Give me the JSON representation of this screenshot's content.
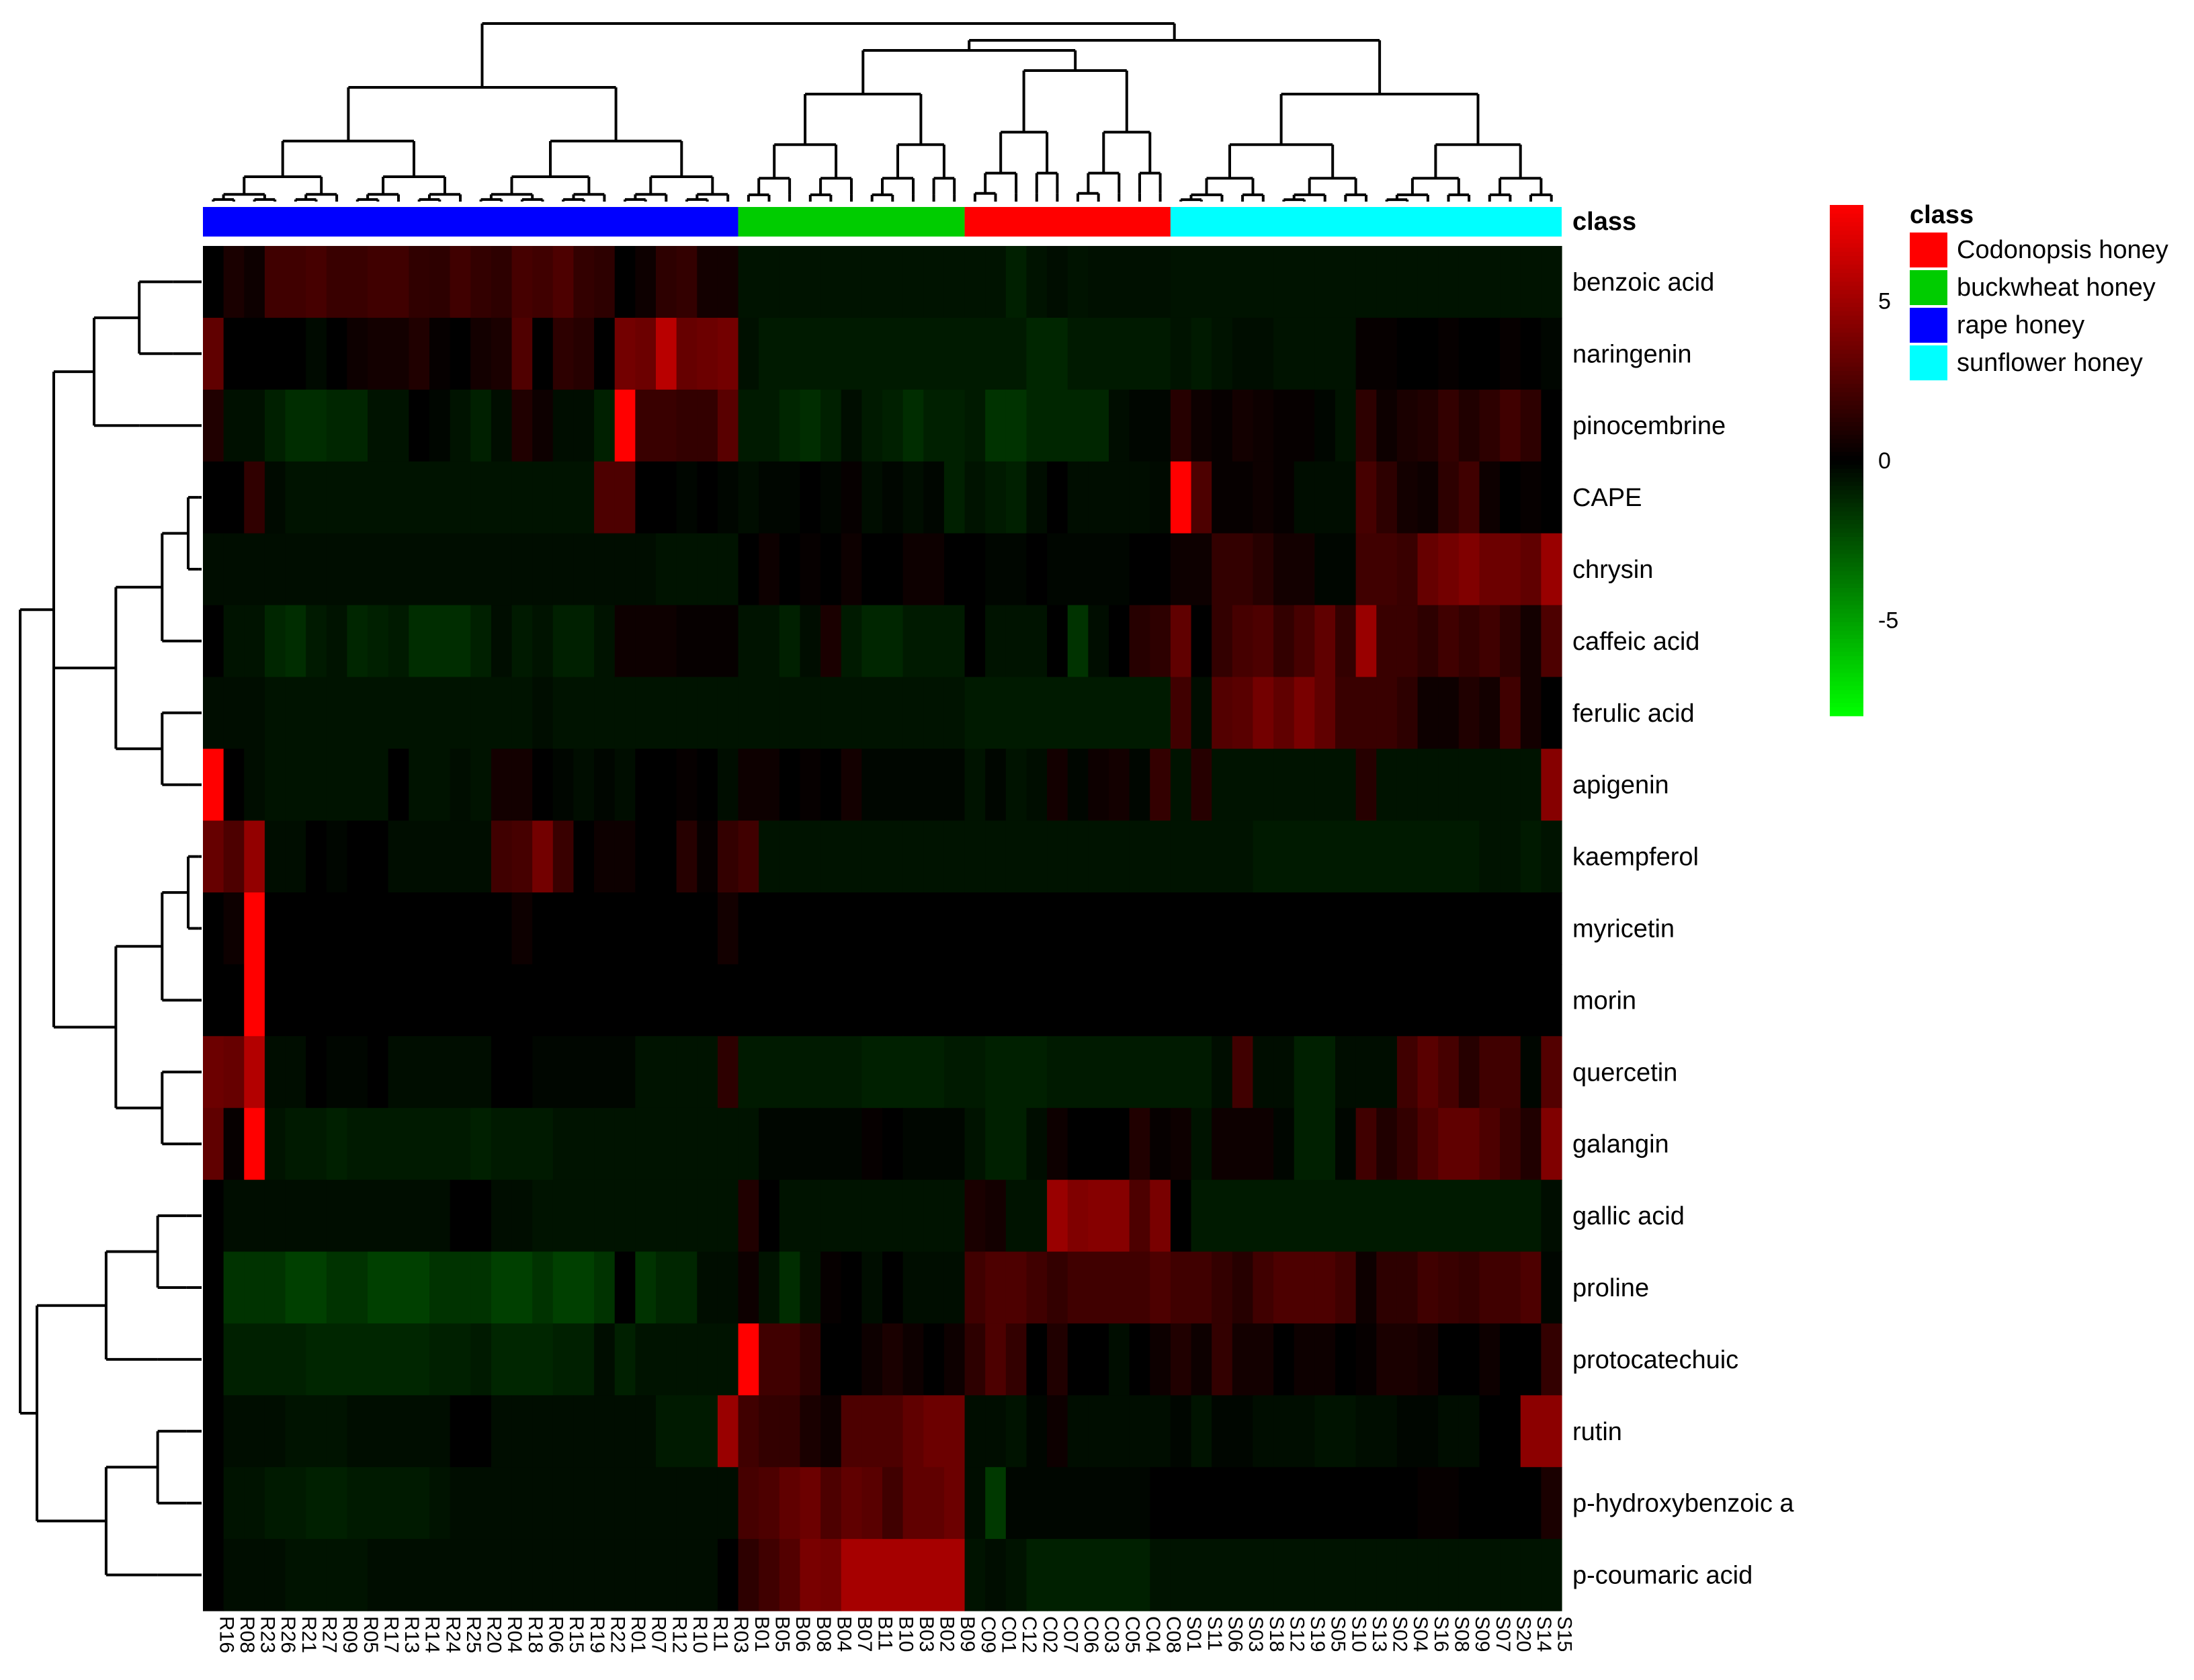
{
  "chart_data": {
    "type": "heatmap",
    "columns": [
      "R16",
      "R08",
      "R23",
      "R26",
      "R21",
      "R27",
      "R09",
      "R05",
      "R17",
      "R13",
      "R14",
      "R24",
      "R25",
      "R20",
      "R04",
      "R18",
      "R06",
      "R15",
      "R19",
      "R22",
      "R01",
      "R07",
      "R12",
      "R10",
      "R11",
      "R03",
      "B01",
      "B05",
      "B06",
      "B08",
      "B04",
      "B07",
      "B11",
      "B10",
      "B03",
      "B02",
      "B09",
      "C09",
      "C01",
      "C12",
      "C02",
      "C07",
      "C06",
      "C03",
      "C05",
      "C04",
      "C08",
      "S01",
      "S11",
      "S06",
      "S03",
      "S18",
      "S12",
      "S19",
      "S05",
      "S10",
      "S13",
      "S02",
      "S04",
      "S16",
      "S08",
      "S09",
      "S07",
      "S20",
      "S14",
      "S15"
    ],
    "rows": [
      "benzoic acid",
      "naringenin",
      "pinocembrine",
      "CAPE",
      "chrysin",
      "caffeic acid",
      "ferulic acid",
      "apigenin",
      "kaempferol",
      "myricetin",
      "morin",
      "quercetin",
      "galangin",
      "gallic acid",
      "proline",
      "protocatechuic",
      "rutin",
      "p-hydroxybenzoic a",
      "p-coumaric acid"
    ],
    "class_bar_label": "class",
    "class_segments": [
      {
        "class": "rape honey",
        "count": 26
      },
      {
        "class": "buckwheat honey",
        "count": 11
      },
      {
        "class": "Codonopsis honey",
        "count": 10
      },
      {
        "class": "sunflower honey",
        "count": 19
      }
    ],
    "legend": {
      "title": "class",
      "entries": [
        {
          "label": "Codonopsis honey",
          "color": "#ff0000"
        },
        {
          "label": "buckwheat honey",
          "color": "#00cc00"
        },
        {
          "label": "rape honey",
          "color": "#0000ff"
        },
        {
          "label": "sunflower honey",
          "color": "#00ffff"
        }
      ]
    },
    "color_scale": {
      "min": -8,
      "max": 8,
      "low_color": "#00ff00",
      "mid_color": "#000000",
      "high_color": "#ff0000",
      "ticks": [
        {
          "value": 5,
          "label": "5"
        },
        {
          "value": 0,
          "label": "0"
        },
        {
          "value": -5,
          "label": "-5"
        }
      ]
    },
    "values": [
      [
        0,
        0.8,
        0.4,
        2,
        2,
        2.2,
        1.8,
        1.8,
        2,
        2,
        1.5,
        1.4,
        2,
        1.6,
        1.4,
        2.2,
        2,
        2.4,
        1.6,
        1.4,
        0,
        0.4,
        1.4,
        1.6,
        0.6,
        0.6,
        -0.6,
        -0.6,
        -0.6,
        -0.6,
        -0.6,
        -0.6,
        -0.6,
        -0.6,
        -0.6,
        -0.6,
        -0.6,
        -0.6,
        -0.6,
        -1,
        -0.6,
        -0.4,
        -0.6,
        -0.5,
        -0.5,
        -0.5,
        -0.5,
        -0.6,
        -0.6,
        -0.6,
        -0.6,
        -0.6,
        -0.6,
        -0.6,
        -0.6,
        -0.6,
        -0.6,
        -0.6,
        -0.6,
        -0.6,
        -0.6,
        -0.6,
        -0.6,
        -0.6,
        -0.6,
        -0.6
      ],
      [
        3,
        0,
        0,
        0,
        0,
        -0.3,
        0,
        0.4,
        0.6,
        0.6,
        1,
        0.2,
        0,
        0.6,
        0.8,
        2.5,
        0,
        1.4,
        1.2,
        0,
        3.6,
        3.4,
        5.8,
        3.2,
        3.4,
        3.6,
        -0.5,
        -0.8,
        -0.8,
        -0.8,
        -0.8,
        -0.8,
        -0.8,
        -0.8,
        -0.8,
        -0.8,
        -0.8,
        -0.8,
        -0.8,
        -0.8,
        -1.2,
        -1.2,
        -0.8,
        -0.8,
        -0.8,
        -0.8,
        -0.8,
        -0.6,
        -0.8,
        -0.6,
        -0.4,
        -0.4,
        -0.6,
        -0.6,
        -0.6,
        -0.6,
        0.2,
        0.2,
        0,
        0,
        0.2,
        0,
        0,
        0.2,
        0,
        -0.2
      ],
      [
        1,
        -0.5,
        -0.5,
        -1,
        -1.4,
        -1.4,
        -1.2,
        -1.2,
        -0.6,
        -0.6,
        0,
        -0.2,
        -0.6,
        -1,
        -0.4,
        1,
        0.4,
        -0.4,
        -0.4,
        -1,
        8,
        1.8,
        1.8,
        1.6,
        1.6,
        2.8,
        -0.8,
        -0.8,
        -1.2,
        -1.4,
        -1,
        -0.4,
        -0.8,
        -1,
        -1.4,
        -1,
        -1,
        -0.8,
        -1.6,
        -1.6,
        -1.2,
        -1.2,
        -1.2,
        -1.2,
        -0.4,
        -0.2,
        -0.2,
        1.2,
        0.4,
        0.2,
        0.6,
        0.4,
        0.2,
        0.2,
        -0.2,
        -0.6,
        1.4,
        0.4,
        0.8,
        1,
        1.6,
        1,
        1.4,
        2,
        1.4,
        0
      ],
      [
        0,
        0,
        1.5,
        -0.3,
        -0.6,
        -0.6,
        -0.6,
        -0.6,
        -0.6,
        -0.6,
        -0.6,
        -0.6,
        -0.6,
        -0.6,
        -0.6,
        -0.6,
        -0.6,
        -0.6,
        -0.6,
        2.4,
        2.4,
        0,
        0,
        -0.2,
        0,
        -0.2,
        -0.4,
        -0.2,
        -0.2,
        0,
        -0.2,
        0.2,
        -0.4,
        -0.2,
        -0.4,
        -0.2,
        -1,
        -0.6,
        -0.8,
        -1,
        -0.4,
        0,
        -0.4,
        -0.4,
        -0.4,
        -0.4,
        -0.3,
        8,
        2.4,
        0.2,
        0.2,
        0.4,
        0.2,
        -0.4,
        -0.4,
        -0.4,
        2.2,
        1.4,
        0.6,
        0.4,
        1.4,
        2,
        0.4,
        0,
        0.2,
        0
      ],
      [
        -0.4,
        -0.4,
        -0.4,
        -0.4,
        -0.4,
        -0.4,
        -0.4,
        -0.4,
        -0.4,
        -0.4,
        -0.4,
        -0.4,
        -0.4,
        -0.4,
        -0.4,
        -0.4,
        -0.4,
        -0.4,
        -0.4,
        -0.4,
        -0.4,
        -0.4,
        -0.6,
        -0.6,
        -0.6,
        -0.6,
        0,
        0.4,
        0,
        0.2,
        0,
        0.4,
        0,
        0,
        0.4,
        0.4,
        0,
        0,
        -0.2,
        -0.2,
        0,
        -0.2,
        -0.2,
        -0.2,
        -0.2,
        0,
        0,
        0.4,
        0.4,
        1.6,
        1.6,
        1.2,
        0.6,
        0.6,
        -0.2,
        -0.2,
        2,
        2,
        1.8,
        3.2,
        3.6,
        4,
        3.4,
        3.4,
        3,
        4.8
      ],
      [
        0,
        -0.6,
        -0.6,
        -1.2,
        -1.4,
        -0.8,
        -0.6,
        -1.2,
        -1,
        -0.8,
        -1.4,
        -1.4,
        -1.4,
        -1,
        -0.4,
        -0.8,
        -0.6,
        -1,
        -1,
        -0.6,
        0.4,
        0.4,
        0.4,
        0.2,
        0.2,
        0.2,
        -0.6,
        -0.6,
        -1,
        -0.4,
        0.8,
        -0.8,
        -1.2,
        -1.2,
        -0.8,
        -0.8,
        -0.8,
        0,
        -0.6,
        -0.6,
        -0.6,
        0,
        -1.6,
        -0.4,
        0,
        1.2,
        1.4,
        3,
        0,
        1.6,
        2.2,
        2.4,
        1.6,
        2.2,
        3,
        1.6,
        4.8,
        1.8,
        1.8,
        1.4,
        2,
        1.6,
        2,
        1.4,
        0.6,
        2.4
      ],
      [
        -0.4,
        -0.4,
        -0.4,
        -0.6,
        -0.6,
        -0.6,
        -0.6,
        -0.6,
        -0.6,
        -0.6,
        -0.6,
        -0.6,
        -0.6,
        -0.6,
        -0.6,
        -0.6,
        -0.4,
        -0.6,
        -0.6,
        -0.6,
        -0.6,
        -0.6,
        -0.6,
        -0.6,
        -0.6,
        -0.6,
        -0.6,
        -0.6,
        -0.6,
        -0.6,
        -0.6,
        -0.6,
        -0.6,
        -0.6,
        -0.6,
        -0.6,
        -0.6,
        -0.8,
        -0.8,
        -0.8,
        -0.8,
        -0.8,
        -0.8,
        -0.8,
        -0.8,
        -0.8,
        -0.8,
        2,
        -0.4,
        2.6,
        2.8,
        3.6,
        3,
        3.8,
        3,
        1.8,
        1.8,
        1.8,
        1.4,
        0.4,
        0.4,
        1,
        0.6,
        2,
        0.6,
        0
      ],
      [
        8,
        0,
        -0.4,
        -0.6,
        -0.6,
        -0.6,
        -0.6,
        -0.6,
        -0.6,
        0,
        -0.6,
        -0.6,
        -0.4,
        -0.6,
        0.6,
        0.6,
        0,
        -0.2,
        -0.4,
        -0.2,
        -0.4,
        0,
        0,
        0.2,
        0,
        -0.4,
        0.4,
        0.4,
        0,
        0.2,
        0,
        0.6,
        -0.2,
        -0.2,
        -0.2,
        -0.2,
        -0.2,
        -0.6,
        -0.2,
        -0.6,
        -0.4,
        0.6,
        -0.2,
        0.4,
        0.6,
        -0.2,
        1.6,
        -0.6,
        1.2,
        -0.6,
        -0.6,
        -0.6,
        -0.6,
        -0.6,
        -0.6,
        -0.6,
        1.2,
        -0.6,
        -0.6,
        -0.6,
        -0.6,
        -0.6,
        -0.6,
        -0.6,
        -0.6,
        4.2
      ],
      [
        3.2,
        2.4,
        4.6,
        -0.4,
        -0.4,
        0,
        -0.2,
        0,
        0,
        -0.4,
        -0.4,
        -0.4,
        -0.4,
        -0.4,
        2,
        2.2,
        3.6,
        1.8,
        0,
        0.4,
        0.4,
        0,
        0,
        1.2,
        0.2,
        1.6,
        2,
        -0.6,
        -0.6,
        -0.6,
        -0.6,
        -0.6,
        -0.6,
        -0.6,
        -0.6,
        -0.6,
        -0.6,
        -0.6,
        -0.6,
        -0.6,
        -0.6,
        -0.6,
        -0.6,
        -0.6,
        -0.6,
        -0.6,
        -0.6,
        -0.6,
        -0.6,
        -0.6,
        -0.6,
        -0.8,
        -0.8,
        -0.8,
        -0.8,
        -0.8,
        -0.8,
        -0.8,
        -0.8,
        -0.8,
        -0.8,
        -0.8,
        -0.6,
        -0.6,
        -0.8,
        -0.6
      ],
      [
        0,
        0.4,
        8,
        0,
        0,
        0,
        0,
        0,
        0,
        0,
        0,
        0,
        0,
        0,
        0,
        0.4,
        0,
        0,
        0,
        0,
        0,
        0,
        0,
        0,
        0,
        0.6,
        0,
        0,
        0,
        0,
        0,
        0,
        0,
        0,
        0,
        0,
        0,
        0,
        0,
        0,
        0,
        0,
        0,
        0,
        0,
        0,
        0,
        0,
        0,
        0,
        0,
        0,
        0,
        0,
        0,
        0,
        0,
        0,
        0,
        0,
        0,
        0,
        0,
        0,
        0,
        0
      ],
      [
        0,
        0,
        8,
        0,
        0,
        0,
        0,
        0,
        0,
        0,
        0,
        0,
        0,
        0,
        0,
        0,
        0,
        0,
        0,
        0,
        0,
        0,
        0,
        0,
        0,
        0,
        0,
        0,
        0,
        0,
        0,
        0,
        0,
        0,
        0,
        0,
        0,
        0,
        0,
        0,
        0,
        0,
        0,
        0,
        0,
        0,
        0,
        0,
        0,
        0,
        0,
        0,
        0,
        0,
        0,
        0,
        0,
        0,
        0,
        0,
        0,
        0,
        0,
        0,
        0,
        0
      ],
      [
        3.4,
        3.2,
        5.6,
        -0.4,
        -0.4,
        0,
        -0.2,
        -0.2,
        0,
        -0.4,
        -0.4,
        -0.4,
        -0.4,
        -0.4,
        0,
        0,
        -0.2,
        -0.2,
        -0.2,
        -0.2,
        -0.2,
        -0.6,
        -0.6,
        -0.6,
        -0.6,
        1.4,
        -0.8,
        -0.8,
        -0.8,
        -0.8,
        -0.8,
        -0.8,
        -1,
        -1,
        -1,
        -1,
        -0.8,
        -0.8,
        -1,
        -1,
        -1,
        -0.8,
        -0.8,
        -0.8,
        -0.8,
        -0.8,
        -0.8,
        -0.8,
        -0.8,
        -0.4,
        2,
        -0.4,
        -0.4,
        -1,
        -1,
        -0.4,
        -0.4,
        -0.4,
        2,
        2.8,
        2.2,
        1.2,
        2,
        2,
        -0.2,
        2.6
      ],
      [
        3,
        0.2,
        8,
        -0.6,
        -0.8,
        -0.8,
        -1,
        -0.8,
        -0.8,
        -0.8,
        -0.8,
        -0.8,
        -0.8,
        -1,
        -0.8,
        -0.8,
        -0.8,
        -0.6,
        -0.6,
        -0.6,
        -0.6,
        -0.6,
        -0.6,
        -0.6,
        -0.6,
        -0.6,
        -0.6,
        -0.2,
        -0.2,
        -0.2,
        -0.2,
        -0.2,
        0.2,
        0,
        -0.2,
        -0.2,
        -0.2,
        -0.6,
        -1,
        -1,
        -0.4,
        0.4,
        0,
        0,
        0,
        1,
        0.2,
        0.4,
        -0.6,
        0.4,
        0.4,
        0.4,
        -0.2,
        -1,
        -1,
        -0.2,
        2,
        1,
        1.6,
        2.4,
        3,
        3,
        2.4,
        1.8,
        1,
        4
      ],
      [
        0,
        -0.4,
        -0.4,
        -0.4,
        -0.4,
        -0.4,
        -0.4,
        -0.4,
        -0.4,
        -0.4,
        -0.4,
        -0.4,
        0,
        0,
        -0.4,
        -0.4,
        -0.6,
        -0.6,
        -0.6,
        -0.6,
        -0.6,
        -0.6,
        -0.6,
        -0.6,
        -0.6,
        -0.6,
        1,
        0,
        -0.6,
        -0.6,
        -0.6,
        -0.6,
        -0.6,
        -0.6,
        -0.6,
        -0.6,
        -0.6,
        0.8,
        0.6,
        -0.6,
        -0.6,
        4.8,
        4,
        4.2,
        4.2,
        2.4,
        3.8,
        0,
        -0.8,
        -0.8,
        -0.8,
        -0.8,
        -0.8,
        -0.8,
        -0.8,
        -0.8,
        -0.8,
        -0.8,
        -0.8,
        -0.8,
        -0.8,
        -0.8,
        -0.8,
        -0.8,
        -0.8,
        -0.4
      ],
      [
        0,
        -1.6,
        -1.6,
        -1.6,
        -2,
        -2,
        -1.6,
        -1.6,
        -2,
        -2,
        -2,
        -1.6,
        -1.6,
        -1.6,
        -2,
        -2,
        -1.6,
        -2,
        -2,
        -1.6,
        0,
        -1.6,
        -1.2,
        -1.2,
        -0.4,
        -0.4,
        0.4,
        -0.6,
        -1.4,
        -0.6,
        0.2,
        0,
        -0.4,
        0,
        -0.4,
        -0.4,
        -0.4,
        2,
        2.4,
        2.4,
        2,
        1.6,
        2,
        2,
        2,
        2,
        2.4,
        2,
        2,
        1.6,
        1.2,
        2,
        2.4,
        2.4,
        2.4,
        2,
        0.4,
        1.4,
        1.4,
        2,
        1.8,
        1.6,
        2,
        2,
        2.4,
        -0.2
      ],
      [
        0,
        -1,
        -1,
        -1,
        -1,
        -1.2,
        -1.2,
        -1.2,
        -1.2,
        -1.2,
        -1.2,
        -1,
        -1,
        -0.8,
        -1.2,
        -1.2,
        -1.2,
        -1,
        -1,
        -0.4,
        -1,
        -0.6,
        -0.6,
        -0.6,
        -0.6,
        -0.6,
        8,
        2,
        2,
        1.4,
        0,
        0,
        0.4,
        0.8,
        0.4,
        0,
        0.4,
        1.4,
        2.4,
        1.6,
        0,
        1,
        0,
        0,
        -0.4,
        0,
        0.4,
        1,
        0.4,
        1.6,
        0.6,
        0.6,
        0,
        0.4,
        0.4,
        0,
        0.2,
        0.8,
        0.8,
        0.6,
        0,
        0,
        0.4,
        0,
        0,
        1.6
      ],
      [
        0,
        -0.4,
        -0.4,
        -0.4,
        -0.6,
        -0.6,
        -0.6,
        -0.4,
        -0.4,
        -0.4,
        -0.4,
        -0.4,
        0,
        0,
        -0.4,
        -0.4,
        -0.4,
        -0.4,
        -0.4,
        -0.4,
        -0.4,
        -0.4,
        -0.8,
        -0.8,
        -0.8,
        4.8,
        2,
        1.6,
        1.6,
        0.8,
        0.4,
        2.4,
        2.4,
        2.4,
        3,
        3.4,
        3.4,
        -0.4,
        -0.4,
        -0.6,
        -0.2,
        0.4,
        -0.4,
        -0.4,
        -0.4,
        -0.4,
        -0.4,
        -0.2,
        -0.6,
        -0.2,
        -0.2,
        -0.4,
        -0.4,
        -0.4,
        -0.6,
        -0.6,
        -0.4,
        -0.4,
        -0.2,
        -0.2,
        -0.4,
        -0.4,
        0,
        0,
        4.4,
        4.4
      ],
      [
        0,
        -0.6,
        -0.6,
        -0.8,
        -0.8,
        -1,
        -1,
        -0.8,
        -0.8,
        -0.8,
        -0.8,
        -0.6,
        -0.4,
        -0.4,
        -0.4,
        -0.4,
        -0.4,
        -0.4,
        -0.4,
        -0.4,
        -0.4,
        -0.4,
        -0.4,
        -0.4,
        -0.4,
        -0.4,
        2.2,
        2.4,
        3,
        3.4,
        2.4,
        3,
        2.8,
        2,
        3,
        3,
        3.4,
        -0.4,
        -1.8,
        -0.2,
        -0.2,
        -0.2,
        -0.2,
        -0.2,
        -0.2,
        -0.2,
        0,
        0,
        0,
        0,
        0,
        0,
        0,
        0,
        0,
        0,
        0,
        0,
        0,
        0.2,
        0.2,
        0,
        0,
        0,
        0,
        0.8
      ],
      [
        0,
        -0.4,
        -0.4,
        -0.4,
        -0.6,
        -0.6,
        -0.6,
        -0.6,
        -0.4,
        -0.4,
        -0.4,
        -0.4,
        -0.4,
        -0.4,
        -0.4,
        -0.4,
        -0.4,
        -0.4,
        -0.4,
        -0.4,
        -0.4,
        -0.4,
        -0.4,
        -0.4,
        -0.4,
        0,
        1.4,
        2,
        2.6,
        3.8,
        3.6,
        5.2,
        5.2,
        5.2,
        5.2,
        5.2,
        5.2,
        -0.6,
        -0.4,
        -0.6,
        -1,
        -1,
        -1,
        -1,
        -1,
        -1,
        -0.6,
        -0.6,
        -0.6,
        -0.6,
        -0.6,
        -0.6,
        -0.6,
        -0.6,
        -0.6,
        -0.6,
        -0.6,
        -0.6,
        -0.6,
        -0.6,
        -0.6,
        -0.6,
        -0.6,
        -0.6,
        -0.6,
        -0.6
      ]
    ]
  }
}
